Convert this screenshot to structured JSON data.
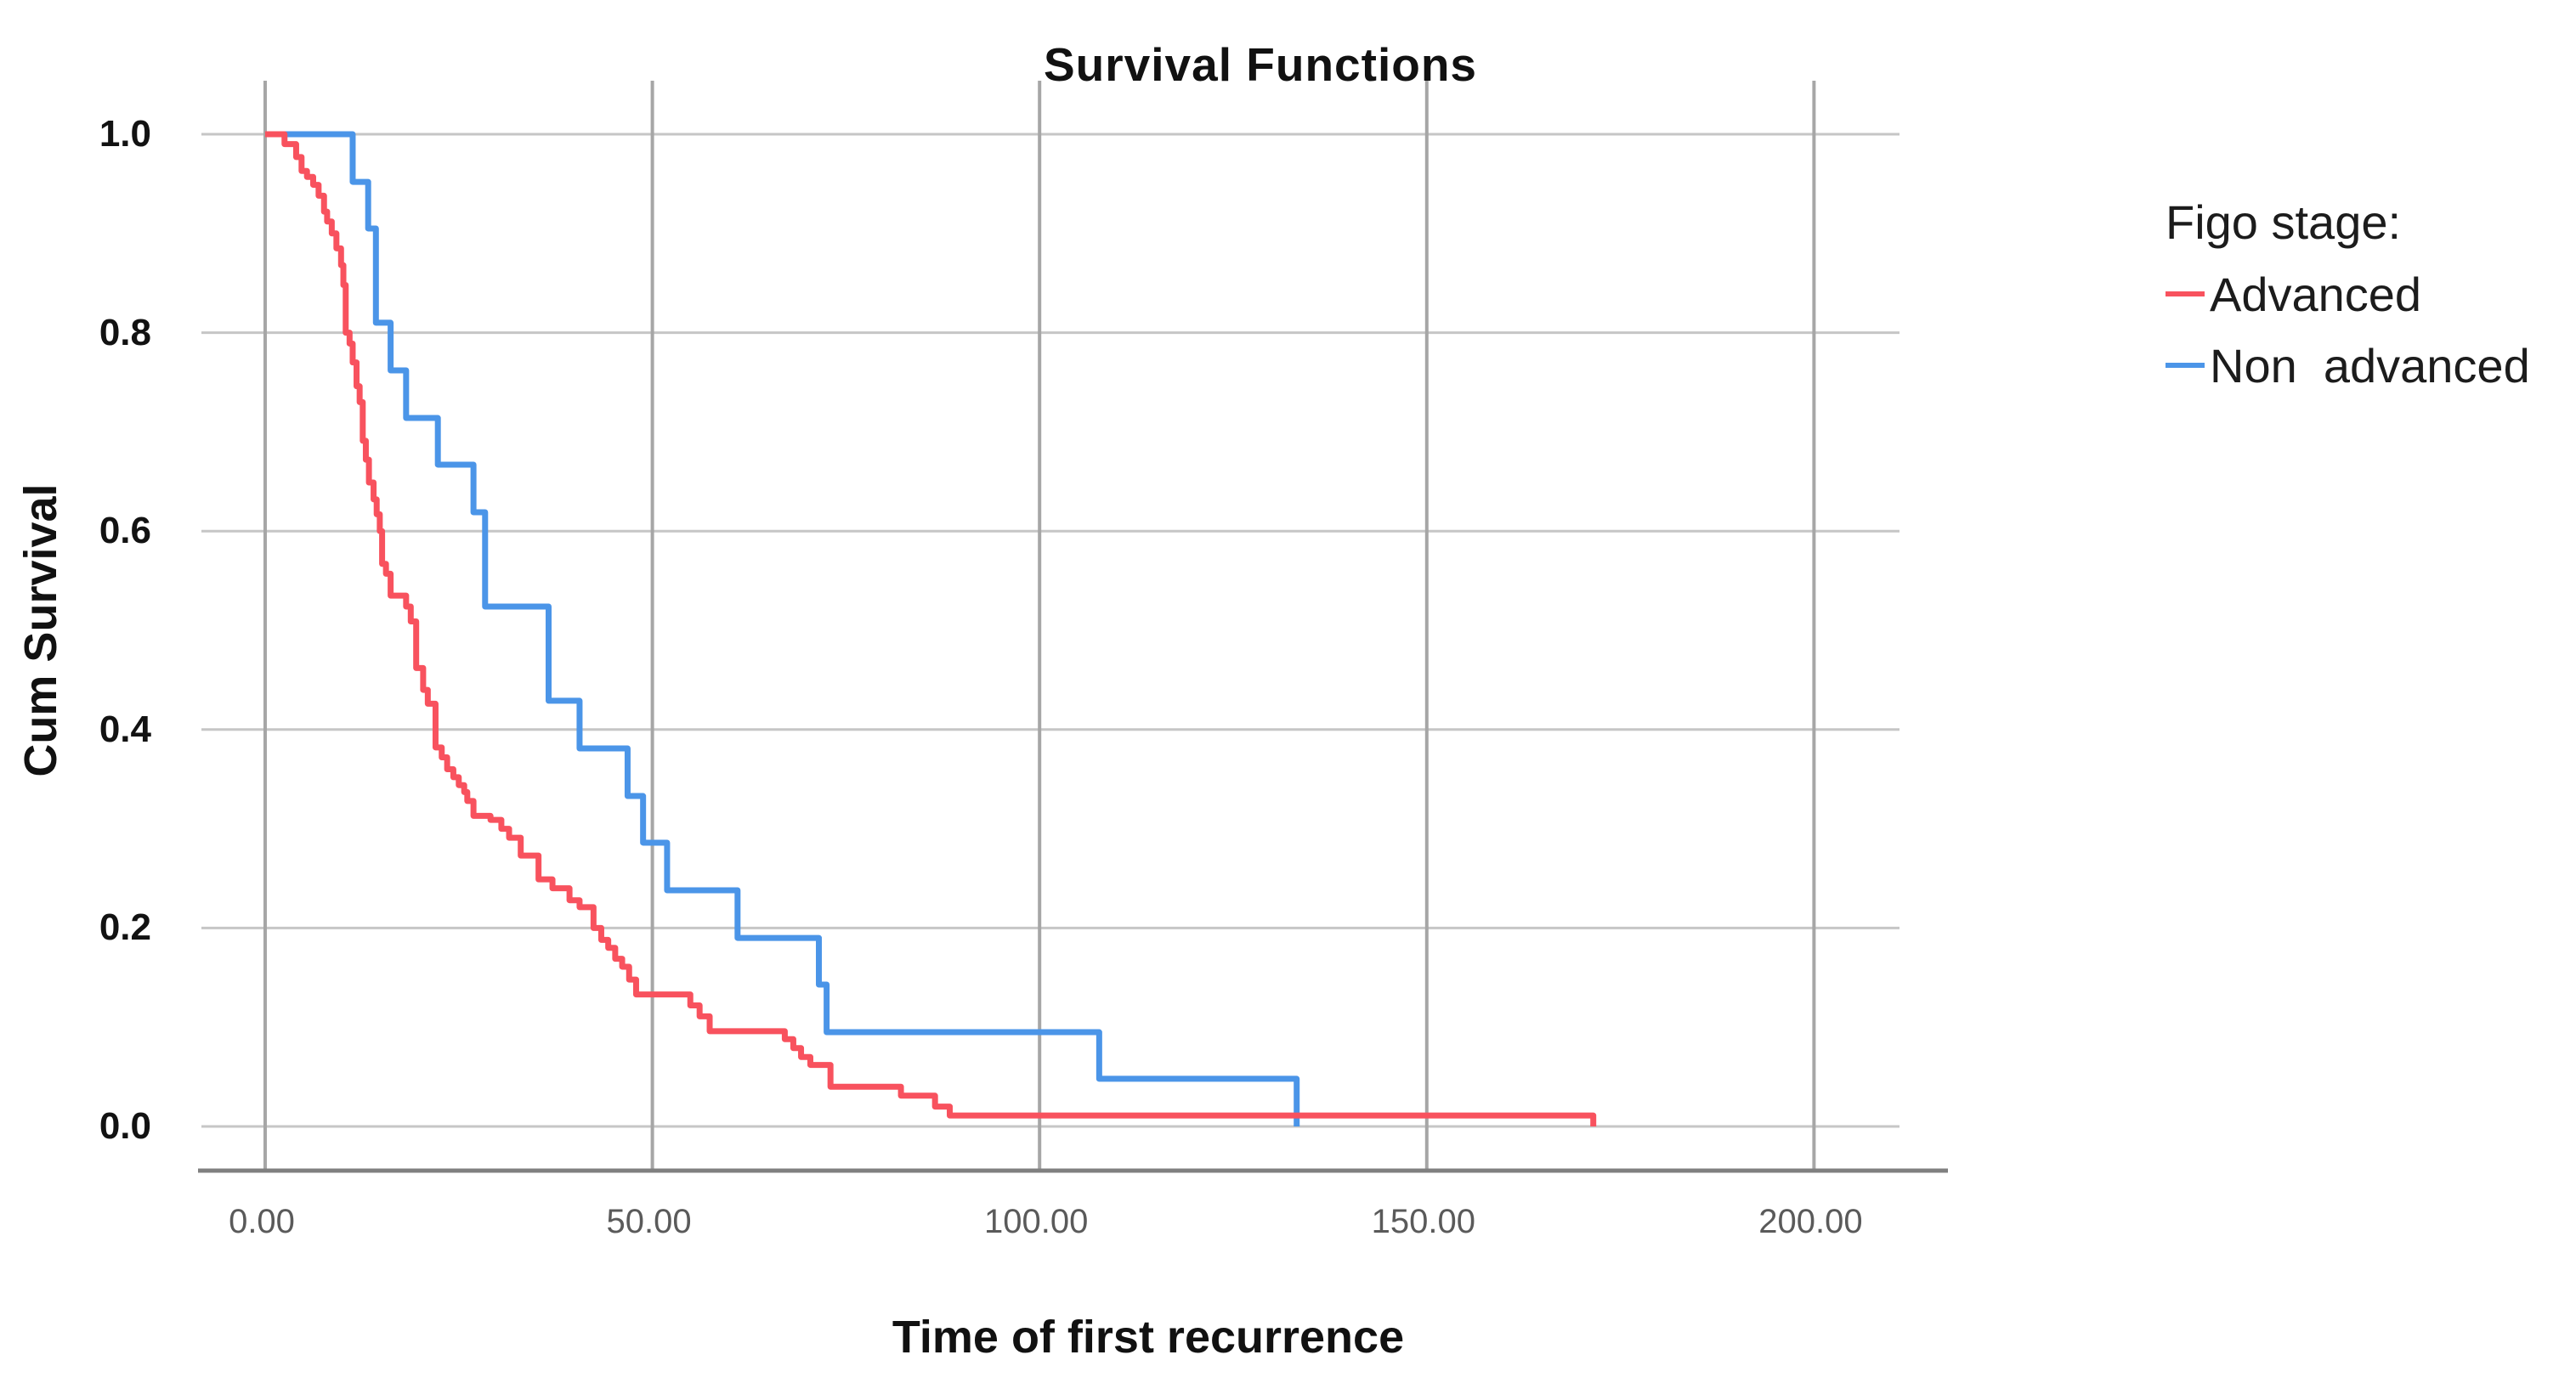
{
  "title": "Survival Functions",
  "axes": {
    "x_label": "Time of first recurrence",
    "y_label": "Cum Survival",
    "x_tick_labels": [
      "0.00",
      "50.00",
      "100.00",
      "150.00",
      "200.00"
    ],
    "y_tick_labels": [
      "1.0",
      "0.8",
      "0.6",
      "0.4",
      "0.2",
      "0.0"
    ]
  },
  "legend": {
    "title": "Figo stage:",
    "items": [
      {
        "label": "Advanced",
        "color": "#f8525e"
      },
      {
        "label": "Non  advanced",
        "color": "#4b95e8"
      }
    ]
  },
  "colors": {
    "advanced": "#f8525e",
    "non_advanced": "#4b95e8",
    "grid_horizontal": "#c6c6c6",
    "grid_vertical": "#a6a6a6",
    "axis_line": "#808080",
    "x_tick_text": "#5a5a5a",
    "y_tick_text": "#121212"
  },
  "chart_data": {
    "type": "line",
    "subtype": "kaplan-meier-step",
    "title": "Survival Functions",
    "xlabel": "Time of first recurrence",
    "ylabel": "Cum Survival",
    "xlim": [
      -8.2,
      211
    ],
    "ylim": [
      0.0,
      1.05
    ],
    "x_tick_values": [
      0,
      50,
      100,
      150,
      200
    ],
    "y_tick_values": [
      1.0,
      0.8,
      0.6,
      0.4,
      0.2,
      0.0
    ],
    "grid": true,
    "legend_position": "right",
    "legend_title": "Figo stage:",
    "series": [
      {
        "name": "Non advanced",
        "color": "#4b95e8",
        "points": [
          [
            0,
            1.0
          ],
          [
            11.3,
            0.952
          ],
          [
            13.3,
            0.905
          ],
          [
            14.3,
            0.81
          ],
          [
            16.2,
            0.762
          ],
          [
            18.2,
            0.714
          ],
          [
            22.3,
            0.667
          ],
          [
            26.9,
            0.619
          ],
          [
            28.4,
            0.524
          ],
          [
            36.6,
            0.429
          ],
          [
            40.6,
            0.381
          ],
          [
            46.8,
            0.333
          ],
          [
            48.8,
            0.286
          ],
          [
            51.9,
            0.238
          ],
          [
            61.0,
            0.19
          ],
          [
            71.5,
            0.143
          ],
          [
            72.5,
            0.095
          ],
          [
            107.7,
            0.048
          ],
          [
            133.2,
            0.0
          ]
        ]
      },
      {
        "name": "Advanced",
        "color": "#f8525e",
        "points": [
          [
            0,
            1.0
          ],
          [
            2.5,
            0.99
          ],
          [
            4.0,
            0.977
          ],
          [
            4.7,
            0.963
          ],
          [
            5.4,
            0.957
          ],
          [
            6.2,
            0.949
          ],
          [
            6.9,
            0.938
          ],
          [
            7.6,
            0.922
          ],
          [
            8.0,
            0.912
          ],
          [
            8.6,
            0.9
          ],
          [
            9.2,
            0.885
          ],
          [
            9.8,
            0.868
          ],
          [
            10.1,
            0.848
          ],
          [
            10.4,
            0.8
          ],
          [
            10.9,
            0.789
          ],
          [
            11.3,
            0.77
          ],
          [
            11.8,
            0.746
          ],
          [
            12.2,
            0.73
          ],
          [
            12.6,
            0.691
          ],
          [
            13.0,
            0.672
          ],
          [
            13.4,
            0.649
          ],
          [
            14.0,
            0.632
          ],
          [
            14.4,
            0.617
          ],
          [
            14.8,
            0.6
          ],
          [
            15.1,
            0.567
          ],
          [
            15.6,
            0.557
          ],
          [
            16.2,
            0.535
          ],
          [
            18.2,
            0.524
          ],
          [
            18.8,
            0.509
          ],
          [
            19.5,
            0.462
          ],
          [
            20.4,
            0.44
          ],
          [
            21.0,
            0.426
          ],
          [
            22.0,
            0.382
          ],
          [
            22.8,
            0.372
          ],
          [
            23.5,
            0.36
          ],
          [
            24.3,
            0.352
          ],
          [
            25.0,
            0.344
          ],
          [
            25.7,
            0.337
          ],
          [
            26.1,
            0.328
          ],
          [
            26.9,
            0.313
          ],
          [
            29.1,
            0.309
          ],
          [
            30.5,
            0.3
          ],
          [
            31.5,
            0.291
          ],
          [
            33.0,
            0.273
          ],
          [
            35.3,
            0.249
          ],
          [
            37.1,
            0.24
          ],
          [
            39.3,
            0.228
          ],
          [
            40.6,
            0.221
          ],
          [
            42.4,
            0.2
          ],
          [
            43.4,
            0.188
          ],
          [
            44.3,
            0.18
          ],
          [
            45.2,
            0.169
          ],
          [
            46.1,
            0.161
          ],
          [
            47.0,
            0.148
          ],
          [
            47.9,
            0.133
          ],
          [
            54.9,
            0.122
          ],
          [
            56.1,
            0.111
          ],
          [
            57.4,
            0.096
          ],
          [
            67.1,
            0.088
          ],
          [
            68.2,
            0.079
          ],
          [
            69.2,
            0.07
          ],
          [
            70.4,
            0.062
          ],
          [
            73.0,
            0.04
          ],
          [
            82.1,
            0.031
          ],
          [
            86.5,
            0.02
          ],
          [
            88.4,
            0.011
          ],
          [
            171.5,
            0.0
          ]
        ]
      }
    ]
  }
}
